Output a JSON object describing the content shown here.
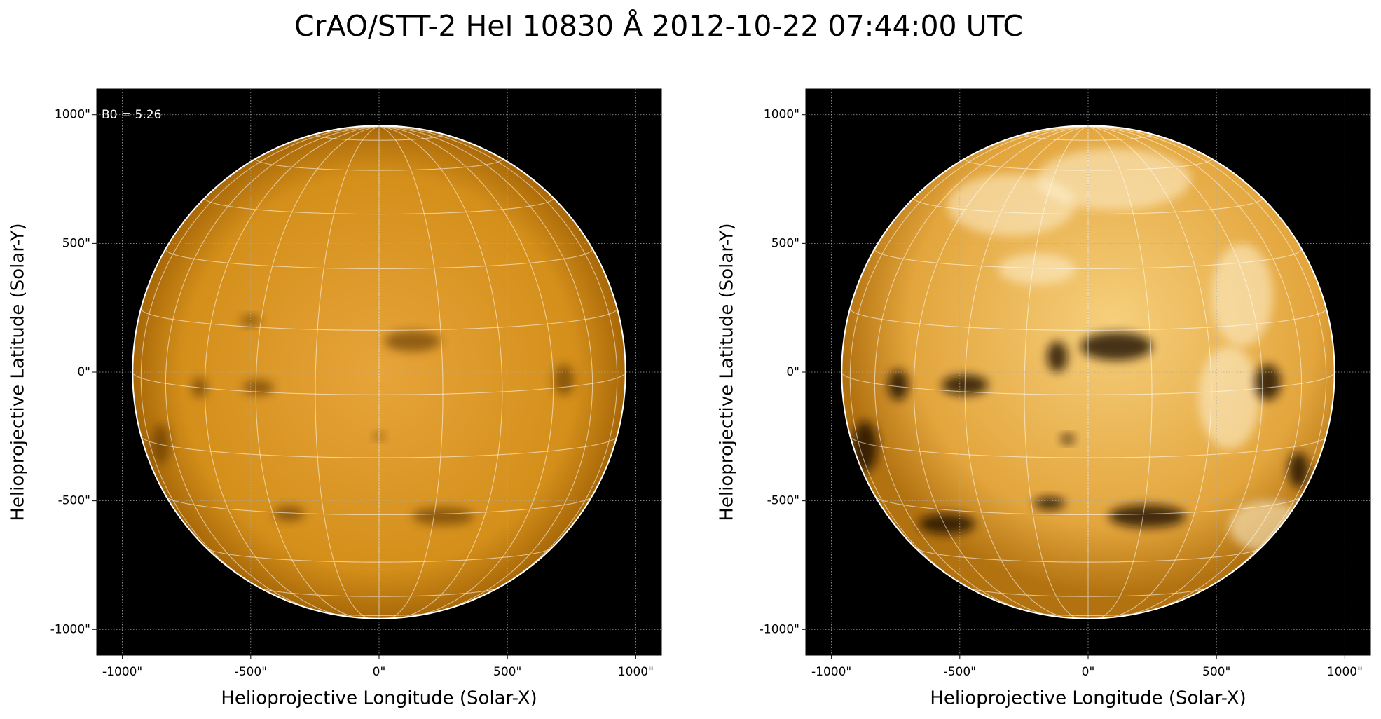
{
  "title": "CrAO/STT-2 HeI 10830 Å 2012-10-22 07:44:00 UTC",
  "chart_data": [
    {
      "type": "image",
      "annotation": "B0 = 5.26",
      "xlabel": "Helioprojective Longitude (Solar-X)",
      "ylabel": "Helioprojective Latitude (Solar-Y)",
      "xlim": [
        -1100,
        1100
      ],
      "ylim": [
        -1100,
        1100
      ],
      "xticks": [
        {
          "value": -1000,
          "label": "-1000\""
        },
        {
          "value": -500,
          "label": "-500\""
        },
        {
          "value": 0,
          "label": "0\""
        },
        {
          "value": 500,
          "label": "500\""
        },
        {
          "value": 1000,
          "label": "1000\""
        }
      ],
      "yticks": [
        {
          "value": -1000,
          "label": "-1000\""
        },
        {
          "value": -500,
          "label": "-500\""
        },
        {
          "value": 0,
          "label": "0\""
        },
        {
          "value": 500,
          "label": "500\""
        },
        {
          "value": 1000,
          "label": "1000\""
        }
      ],
      "grid": true
    },
    {
      "type": "image",
      "xlabel": "Helioprojective Longitude (Solar-X)",
      "ylabel": "Helioprojective Latitude (Solar-Y)",
      "xlim": [
        -1100,
        1100
      ],
      "ylim": [
        -1100,
        1100
      ],
      "xticks": [
        {
          "value": -1000,
          "label": "-1000\""
        },
        {
          "value": -500,
          "label": "-500\""
        },
        {
          "value": 0,
          "label": "0\""
        },
        {
          "value": 500,
          "label": "500\""
        },
        {
          "value": 1000,
          "label": "1000\""
        }
      ],
      "yticks": [
        {
          "value": -1000,
          "label": "-1000\""
        },
        {
          "value": -500,
          "label": "-500\""
        },
        {
          "value": 0,
          "label": "0\""
        },
        {
          "value": 500,
          "label": "500\""
        },
        {
          "value": 1000,
          "label": "1000\""
        }
      ],
      "grid": true
    }
  ]
}
